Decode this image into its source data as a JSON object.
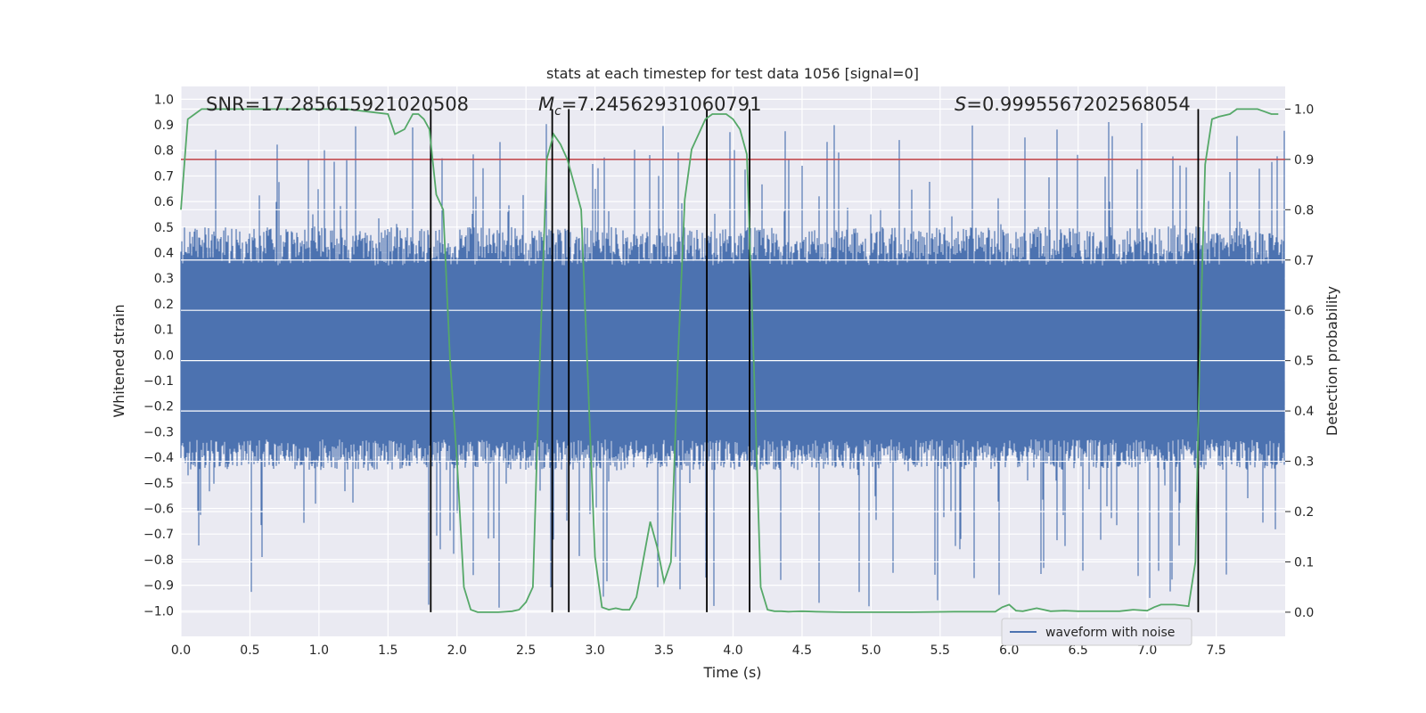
{
  "chart_data": {
    "type": "line",
    "title": "stats at each timestep for test data 1056 [signal=0]",
    "xlabel": "Time (s)",
    "ylabel": "Whitened strain",
    "y2label": "Detection probability",
    "xlim": [
      0,
      8
    ],
    "ylim": [
      -1.1,
      1.05
    ],
    "y2lim": [
      -0.048,
      1.045
    ],
    "xticks": [
      "0.0",
      "0.5",
      "1.0",
      "1.5",
      "2.0",
      "2.5",
      "3.0",
      "3.5",
      "4.0",
      "4.5",
      "5.0",
      "5.5",
      "6.0",
      "6.5",
      "7.0",
      "7.5"
    ],
    "yticks": [
      "1.0",
      "0.9",
      "0.8",
      "0.7",
      "0.6",
      "0.5",
      "0.4",
      "0.3",
      "0.2",
      "0.1",
      "0.0",
      "−0.1",
      "−0.2",
      "−0.3",
      "−0.4",
      "−0.5",
      "−0.6",
      "−0.7",
      "−0.8",
      "−0.9",
      "−1.0"
    ],
    "y2ticks": [
      "1.0",
      "0.9",
      "0.8",
      "0.7",
      "0.6",
      "0.5",
      "0.4",
      "0.3",
      "0.2",
      "0.1",
      "0.0"
    ],
    "grid": true,
    "legend": {
      "entries": [
        "waveform with noise"
      ],
      "placement": "lower-right"
    },
    "annotations": {
      "snr": "SNR=17.285615921020508",
      "mc_symbol": "M",
      "mc_sub": "c",
      "mc_value": "=7.24562931060791",
      "s_symbol": "S",
      "s_value": "=0.9995567202568054"
    },
    "threshold": {
      "value": 0.9,
      "axis": "y2",
      "color": "#c44e52"
    },
    "vlines": [
      1.81,
      2.69,
      2.81,
      3.81,
      4.12,
      7.37
    ],
    "series": [
      {
        "name": "waveform with noise",
        "axis": "y",
        "color": "#4c72b0",
        "kind": "noise",
        "typical_range": [
          -0.45,
          0.5
        ],
        "peak_max": 0.92,
        "peak_min": -1.0
      },
      {
        "axis": "y2",
        "color": "#55a868",
        "x": [
          0.0,
          0.05,
          0.1,
          0.15,
          0.3,
          0.5,
          0.8,
          1.0,
          1.2,
          1.35,
          1.5,
          1.55,
          1.62,
          1.68,
          1.72,
          1.76,
          1.8,
          1.85,
          1.9,
          1.95,
          2.0,
          2.05,
          2.1,
          2.15,
          2.2,
          2.3,
          2.4,
          2.45,
          2.5,
          2.55,
          2.6,
          2.65,
          2.7,
          2.75,
          2.8,
          2.85,
          2.9,
          3.0,
          3.05,
          3.1,
          3.15,
          3.2,
          3.25,
          3.3,
          3.4,
          3.45,
          3.5,
          3.55,
          3.6,
          3.65,
          3.7,
          3.75,
          3.8,
          3.85,
          3.9,
          3.95,
          4.0,
          4.05,
          4.1,
          4.15,
          4.2,
          4.25,
          4.3,
          4.35,
          4.4,
          4.5,
          4.6,
          4.8,
          5.0,
          5.3,
          5.6,
          5.9,
          5.95,
          6.0,
          6.05,
          6.1,
          6.2,
          6.3,
          6.4,
          6.5,
          6.6,
          6.8,
          6.9,
          7.0,
          7.05,
          7.1,
          7.2,
          7.3,
          7.35,
          7.38,
          7.42,
          7.47,
          7.52,
          7.6,
          7.65,
          7.7,
          7.8,
          7.85,
          7.9,
          7.95
        ],
        "y": [
          0.8,
          0.98,
          0.99,
          1.0,
          1.0,
          1.0,
          1.0,
          1.0,
          1.0,
          0.995,
          0.99,
          0.95,
          0.96,
          0.99,
          0.99,
          0.98,
          0.96,
          0.83,
          0.8,
          0.5,
          0.3,
          0.05,
          0.005,
          0.0,
          0.0,
          0.0,
          0.002,
          0.005,
          0.02,
          0.05,
          0.5,
          0.9,
          0.95,
          0.93,
          0.9,
          0.85,
          0.8,
          0.11,
          0.01,
          0.005,
          0.008,
          0.005,
          0.005,
          0.03,
          0.18,
          0.13,
          0.06,
          0.1,
          0.5,
          0.82,
          0.92,
          0.95,
          0.98,
          0.99,
          0.99,
          0.99,
          0.98,
          0.96,
          0.91,
          0.5,
          0.05,
          0.005,
          0.002,
          0.002,
          0.001,
          0.002,
          0.001,
          0.0,
          0.0,
          0.0,
          0.001,
          0.001,
          0.01,
          0.015,
          0.003,
          0.002,
          0.008,
          0.002,
          0.003,
          0.002,
          0.002,
          0.002,
          0.005,
          0.003,
          0.01,
          0.015,
          0.015,
          0.012,
          0.1,
          0.5,
          0.89,
          0.98,
          0.985,
          0.99,
          1.0,
          1.0,
          1.0,
          0.995,
          0.99,
          0.99
        ]
      }
    ]
  }
}
